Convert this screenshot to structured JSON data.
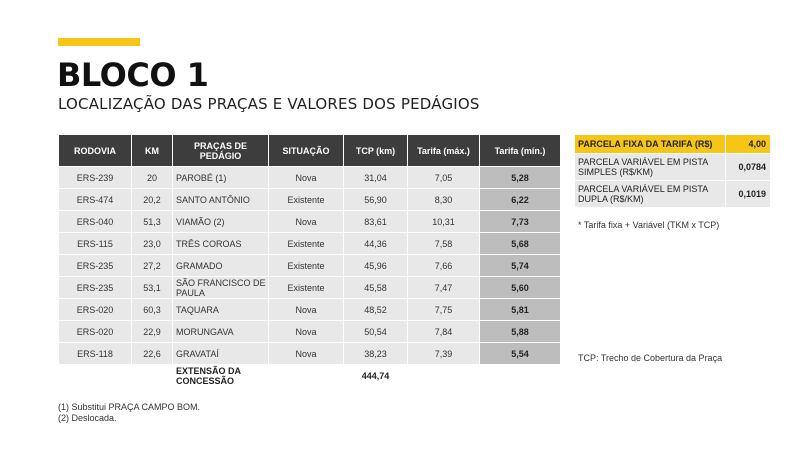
{
  "header": {
    "title": "BLOCO 1",
    "subtitle": "LOCALIZAÇÃO DAS PRAÇAS E VALORES DOS PEDÁGIOS"
  },
  "table": {
    "columns": [
      "RODOVIA",
      "KM",
      "PRAÇAS DE PEDÁGIO",
      "SITUAÇÃO",
      "TCP (km)",
      "Tarifa (máx.)",
      "Tarifa (mín.)"
    ],
    "rows": [
      {
        "rodovia": "ERS-239",
        "km": "20",
        "praca": "PAROBÉ (1)",
        "situacao": "Nova",
        "tcp": "31,04",
        "tarifa_max": "7,05",
        "tarifa_min": "5,28"
      },
      {
        "rodovia": "ERS-474",
        "km": "20,2",
        "praca": "SANTO ANTÔNIO",
        "situacao": "Existente",
        "tcp": "56,90",
        "tarifa_max": "8,30",
        "tarifa_min": "6,22"
      },
      {
        "rodovia": "ERS-040",
        "km": "51,3",
        "praca": "VIAMÃO (2)",
        "situacao": "Nova",
        "tcp": "83,61",
        "tarifa_max": "10,31",
        "tarifa_min": "7,73"
      },
      {
        "rodovia": "ERS-115",
        "km": "23,0",
        "praca": "TRÊS COROAS",
        "situacao": "Existente",
        "tcp": "44,36",
        "tarifa_max": "7,58",
        "tarifa_min": "5,68"
      },
      {
        "rodovia": "ERS-235",
        "km": "27,2",
        "praca": "GRAMADO",
        "situacao": "Existente",
        "tcp": "45,96",
        "tarifa_max": "7,66",
        "tarifa_min": "5,74"
      },
      {
        "rodovia": "ERS-235",
        "km": "53,1",
        "praca": "SÃO FRANCISCO DE PAULA",
        "situacao": "Existente",
        "tcp": "45,58",
        "tarifa_max": "7,47",
        "tarifa_min": "5,60"
      },
      {
        "rodovia": "ERS-020",
        "km": "60,3",
        "praca": "TAQUARA",
        "situacao": "Nova",
        "tcp": "48,52",
        "tarifa_max": "7,75",
        "tarifa_min": "5,81"
      },
      {
        "rodovia": "ERS-020",
        "km": "22,9",
        "praca": "MORUNGAVA",
        "situacao": "Nova",
        "tcp": "50,54",
        "tarifa_max": "7,84",
        "tarifa_min": "5,88"
      },
      {
        "rodovia": "ERS-118",
        "km": "22,6",
        "praca": "GRAVATAÍ",
        "situacao": "Nova",
        "tcp": "38,23",
        "tarifa_max": "7,39",
        "tarifa_min": "5,54"
      }
    ],
    "footer": {
      "label": "EXTENSÃO DA CONCESSÃO",
      "total_tcp": "444,74"
    }
  },
  "side_table": {
    "fixed_label": "PARCELA FIXA DA TARIFA (R$)",
    "fixed_value": "4,00",
    "simple_label": "PARCELA VARIÁVEL EM PISTA SIMPLES (R$/KM)",
    "simple_value": "0,0784",
    "double_label": "PARCELA VARIÁVEL EM PISTA DUPLA (R$/KM)",
    "double_value": "0,1019"
  },
  "notes": {
    "formula": "* Tarifa fixa + Variável (TKM x TCP)",
    "tcp": "TCP: Trecho de Cobertura da Praça",
    "footnote_1": "(1) Substitui PRAÇA CAMPO BOM.",
    "footnote_2": "(2) Deslocada."
  },
  "colors": {
    "accent": "#f5c518",
    "header_bg": "#3d3d3d",
    "cell_bg": "#e8e8e8",
    "highlight_cell_bg": "#bdbdbd"
  }
}
